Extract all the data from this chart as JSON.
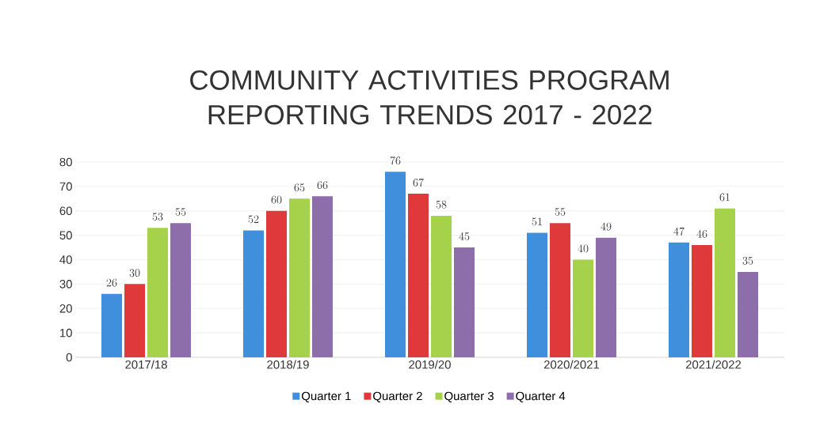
{
  "chart_data": {
    "type": "bar",
    "title": "COMMUNITY ACTIVITIES PROGRAM REPORTING TRENDS  2017 - 2022",
    "categories": [
      "2017/18",
      "2018/19",
      "2019/20",
      "2020/2021",
      "2021/2022"
    ],
    "series": [
      {
        "name": "Quarter 1",
        "color": "#3f8fdc",
        "values": [
          26,
          52,
          76,
          51,
          47
        ]
      },
      {
        "name": "Quarter 2",
        "color": "#e0393b",
        "values": [
          30,
          60,
          67,
          55,
          46
        ]
      },
      {
        "name": "Quarter 3",
        "color": "#a5d24a",
        "values": [
          53,
          65,
          58,
          40,
          61
        ]
      },
      {
        "name": "Quarter 4",
        "color": "#8d6daa",
        "values": [
          55,
          66,
          45,
          49,
          35
        ]
      }
    ],
    "ylim": [
      0,
      80
    ],
    "yticks": [
      0,
      10,
      20,
      30,
      40,
      50,
      60,
      70,
      80
    ],
    "grid": "y",
    "legend": "bottom",
    "data_labels": true
  }
}
